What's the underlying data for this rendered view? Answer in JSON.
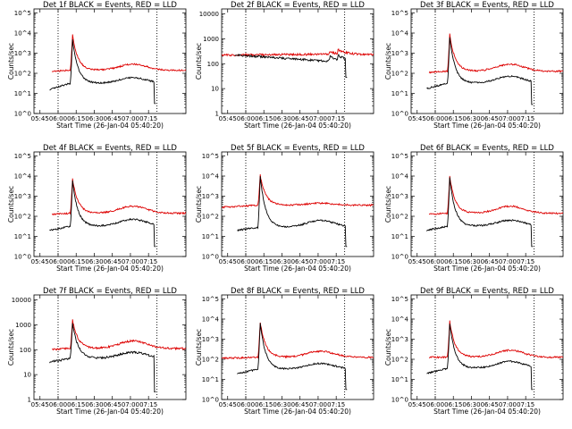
{
  "colors": {
    "events": "#000000",
    "lld": "#dd0000",
    "frame": "#000000"
  },
  "x_ticks": [
    "05:45",
    "06:00",
    "06:15",
    "06:30",
    "06:45",
    "07:00",
    "07:15"
  ],
  "x_label": "Start Time (26-Jan-04 05:40:20)",
  "y_label": "Counts/sec",
  "chart_data": [
    {
      "type": "line",
      "title": "Det 1f BLACK = Events, RED = LLD",
      "x_tick_labels": [
        "05:45",
        "06:00",
        "06:15",
        "06:30",
        "06:45",
        "07:00",
        "07:15"
      ],
      "y_tick_labels": [
        "10^0",
        "10^1",
        "10^2",
        "10^3",
        "10^4",
        "10^5"
      ],
      "ylim_log10": [
        0,
        5.2
      ],
      "markers_min": [
        20,
        102
      ],
      "peak_min": 32,
      "series": [
        {
          "name": "Events",
          "color": "#000000",
          "start": 13,
          "end": 101,
          "base": 1.5,
          "peak": 3.7,
          "pre": 1.2,
          "bump": 1.78,
          "drop": 0.5
        },
        {
          "name": "LLD",
          "color": "#dd0000",
          "start": 15,
          "end": 126,
          "base": 2.15,
          "peak": 3.9,
          "pre": 2.1,
          "bump": 2.45
        }
      ]
    },
    {
      "type": "line",
      "title": "Det 2f BLACK = Events, RED = LLD",
      "x_tick_labels": [
        "05:45",
        "06:00",
        "06:15",
        "06:30",
        "06:45",
        "07:00",
        "07:15"
      ],
      "y_tick_labels": [
        "1",
        "10",
        "100",
        "1000",
        "10000"
      ],
      "ylim_log10": [
        0,
        4.2
      ],
      "markers_min": [
        20,
        102
      ],
      "peak_min": 0,
      "series": [
        {
          "name": "Events",
          "color": "#000000",
          "start": 11,
          "end": 104,
          "base": 2.1,
          "peak": 2.3,
          "pre": 2.35,
          "bump": 2.55,
          "drop": 1.45
        },
        {
          "name": "LLD",
          "color": "#dd0000",
          "start": 0,
          "end": 126,
          "base": 2.38,
          "peak": 2.48,
          "pre": 2.35,
          "bump": 2.75
        }
      ]
    },
    {
      "type": "line",
      "title": "Det 3f BLACK = Events, RED = LLD",
      "x_tick_labels": [
        "05:45",
        "06:00",
        "06:15",
        "06:30",
        "06:45",
        "07:00",
        "07:15"
      ],
      "y_tick_labels": [
        "10^0",
        "10^1",
        "10^2",
        "10^3",
        "10^4",
        "10^5"
      ],
      "ylim_log10": [
        0,
        5.2
      ],
      "markers_min": [
        20,
        102
      ],
      "peak_min": 32,
      "series": [
        {
          "name": "Events",
          "color": "#000000",
          "start": 13,
          "end": 101,
          "base": 1.5,
          "peak": 3.8,
          "pre": 1.25,
          "bump": 1.85,
          "drop": 0.45
        },
        {
          "name": "LLD",
          "color": "#dd0000",
          "start": 15,
          "end": 126,
          "base": 2.1,
          "peak": 3.95,
          "pre": 2.05,
          "bump": 2.45
        }
      ]
    },
    {
      "type": "line",
      "title": "Det 4f BLACK = Events, RED = LLD",
      "x_tick_labels": [
        "05:45",
        "06:00",
        "06:15",
        "06:30",
        "06:45",
        "07:00",
        "07:15"
      ],
      "y_tick_labels": [
        "10^0",
        "10^1",
        "10^2",
        "10^3",
        "10^4",
        "10^5"
      ],
      "ylim_log10": [
        0,
        5.2
      ],
      "markers_min": [
        20,
        102
      ],
      "peak_min": 32,
      "series": [
        {
          "name": "Events",
          "color": "#000000",
          "start": 13,
          "end": 101,
          "base": 1.5,
          "peak": 3.75,
          "pre": 1.3,
          "bump": 1.85,
          "drop": 0.5
        },
        {
          "name": "LLD",
          "color": "#dd0000",
          "start": 15,
          "end": 126,
          "base": 2.15,
          "peak": 3.85,
          "pre": 2.1,
          "bump": 2.5
        }
      ]
    },
    {
      "type": "line",
      "title": "Det 5f BLACK = Events, RED = LLD",
      "x_tick_labels": [
        "05:45",
        "06:00",
        "06:15",
        "06:30",
        "06:45",
        "07:00",
        "07:15"
      ],
      "y_tick_labels": [
        "10^0",
        "10^1",
        "10^2",
        "10^3",
        "10^4",
        "10^5"
      ],
      "ylim_log10": [
        0,
        5.2
      ],
      "markers_min": [
        20,
        102
      ],
      "peak_min": 32,
      "series": [
        {
          "name": "Events",
          "color": "#000000",
          "start": 13,
          "end": 104,
          "base": 1.45,
          "peak": 4.0,
          "pre": 1.3,
          "bump": 1.8,
          "drop": 0.5
        },
        {
          "name": "LLD",
          "color": "#dd0000",
          "start": 0,
          "end": 126,
          "base": 2.55,
          "peak": 4.05,
          "pre": 2.45,
          "bump": 2.65
        }
      ]
    },
    {
      "type": "line",
      "title": "Det 6f BLACK = Events, RED = LLD",
      "x_tick_labels": [
        "05:45",
        "06:00",
        "06:15",
        "06:30",
        "06:45",
        "07:00",
        "07:15"
      ],
      "y_tick_labels": [
        "10^0",
        "10^1",
        "10^2",
        "10^3",
        "10^4",
        "10^5"
      ],
      "ylim_log10": [
        0,
        5.2
      ],
      "markers_min": [
        20,
        102
      ],
      "peak_min": 32,
      "series": [
        {
          "name": "Events",
          "color": "#000000",
          "start": 13,
          "end": 101,
          "base": 1.5,
          "peak": 3.9,
          "pre": 1.3,
          "bump": 1.8,
          "drop": 0.5
        },
        {
          "name": "LLD",
          "color": "#dd0000",
          "start": 15,
          "end": 126,
          "base": 2.15,
          "peak": 4.0,
          "pre": 2.1,
          "bump": 2.5
        }
      ]
    },
    {
      "type": "line",
      "title": "Det 7f BLACK = Events, RED = LLD",
      "x_tick_labels": [
        "05:45",
        "06:00",
        "06:15",
        "06:30",
        "06:45",
        "07:00",
        "07:15"
      ],
      "y_tick_labels": [
        "1",
        "10",
        "100",
        "1000",
        "10000"
      ],
      "ylim_log10": [
        0,
        4.2
      ],
      "markers_min": [
        20,
        102
      ],
      "peak_min": 32,
      "series": [
        {
          "name": "Events",
          "color": "#000000",
          "start": 13,
          "end": 101,
          "base": 1.65,
          "peak": 3.1,
          "pre": 1.5,
          "bump": 1.9,
          "drop": 0.3
        },
        {
          "name": "LLD",
          "color": "#dd0000",
          "start": 15,
          "end": 126,
          "base": 2.05,
          "peak": 3.2,
          "pre": 2.0,
          "bump": 2.35
        }
      ]
    },
    {
      "type": "line",
      "title": "Det 8f BLACK = Events, RED = LLD",
      "x_tick_labels": [
        "05:45",
        "06:00",
        "06:15",
        "06:30",
        "06:45",
        "07:00",
        "07:15"
      ],
      "y_tick_labels": [
        "10^0",
        "10^1",
        "10^2",
        "10^3",
        "10^4",
        "10^5"
      ],
      "ylim_log10": [
        0,
        5.2
      ],
      "markers_min": [
        20,
        102
      ],
      "peak_min": 32,
      "series": [
        {
          "name": "Events",
          "color": "#000000",
          "start": 13,
          "end": 104,
          "base": 1.5,
          "peak": 3.8,
          "pre": 1.3,
          "bump": 1.8,
          "drop": 0.5
        },
        {
          "name": "LLD",
          "color": "#dd0000",
          "start": 0,
          "end": 126,
          "base": 2.1,
          "peak": 3.85,
          "pre": 2.05,
          "bump": 2.4
        }
      ]
    },
    {
      "type": "line",
      "title": "Det 9f BLACK = Events, RED = LLD",
      "x_tick_labels": [
        "05:45",
        "06:00",
        "06:15",
        "06:30",
        "06:45",
        "07:00",
        "07:15"
      ],
      "y_tick_labels": [
        "10^0",
        "10^1",
        "10^2",
        "10^3",
        "10^4",
        "10^5"
      ],
      "ylim_log10": [
        0,
        5.2
      ],
      "markers_min": [
        20,
        102
      ],
      "peak_min": 32,
      "series": [
        {
          "name": "Events",
          "color": "#000000",
          "start": 13,
          "end": 101,
          "base": 1.55,
          "peak": 3.8,
          "pre": 1.3,
          "bump": 1.9,
          "drop": 0.5
        },
        {
          "name": "LLD",
          "color": "#dd0000",
          "start": 15,
          "end": 126,
          "base": 2.1,
          "peak": 3.9,
          "pre": 2.1,
          "bump": 2.45
        }
      ]
    }
  ]
}
